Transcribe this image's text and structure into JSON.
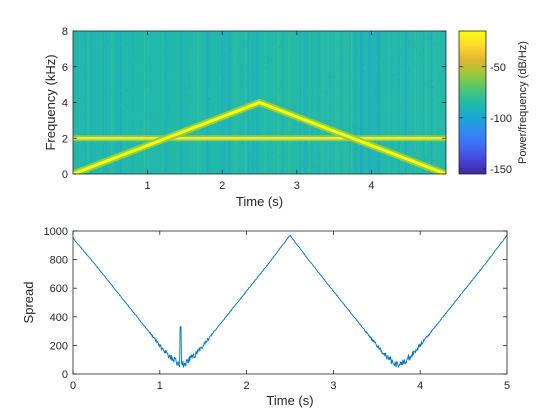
{
  "chart_data": [
    {
      "type": "heatmap",
      "subtype": "spectrogram",
      "xlabel": "Time (s)",
      "ylabel": "Frequency (kHz)",
      "xlim": [
        0,
        5
      ],
      "ylim": [
        0,
        8
      ],
      "xticks": [
        1,
        2,
        3,
        4
      ],
      "yticks": [
        0,
        2,
        4,
        6,
        8
      ],
      "background_level_db": -100,
      "features": {
        "tone": {
          "frequency_khz": 2,
          "level_db": -45
        },
        "chirp": {
          "points": [
            {
              "t": 0,
              "f_khz": 0
            },
            {
              "t": 2.5,
              "f_khz": 4
            },
            {
              "t": 5,
              "f_khz": 0
            }
          ],
          "level_db": -30
        }
      },
      "colorbar": {
        "label": "Power/frequency (dB/Hz)",
        "ticks": [
          -50,
          -100,
          -150
        ],
        "range": [
          -155,
          -15
        ],
        "colormap": [
          "#3e26a8",
          "#4745d6",
          "#3f6df8",
          "#2e8df0",
          "#1aa8d3",
          "#20bca3",
          "#50c76f",
          "#9fc83a",
          "#e3b52e",
          "#fddb2b",
          "#f9fb0e"
        ]
      }
    },
    {
      "type": "line",
      "xlabel": "Time (s)",
      "ylabel": "Spread",
      "xlim": [
        0,
        5
      ],
      "ylim": [
        0,
        1000
      ],
      "xticks": [
        0,
        1,
        2,
        3,
        4,
        5
      ],
      "yticks": [
        0,
        200,
        400,
        600,
        800,
        1000
      ],
      "color": "#0072bd",
      "series": [
        {
          "x": [
            0,
            0.25,
            0.5,
            0.75,
            1.0,
            1.1,
            1.2,
            1.25,
            1.3,
            1.4,
            1.5,
            1.75,
            2.0,
            2.25,
            2.5,
            2.75,
            3.0,
            3.25,
            3.5,
            3.6,
            3.7,
            3.75,
            3.8,
            3.9,
            4.0,
            4.25,
            4.5,
            4.75,
            5.0
          ],
          "y": [
            950,
            770,
            580,
            390,
            200,
            130,
            80,
            60,
            80,
            130,
            200,
            390,
            580,
            770,
            970,
            770,
            580,
            390,
            200,
            130,
            80,
            60,
            80,
            130,
            200,
            390,
            580,
            770,
            970
          ]
        }
      ]
    }
  ]
}
